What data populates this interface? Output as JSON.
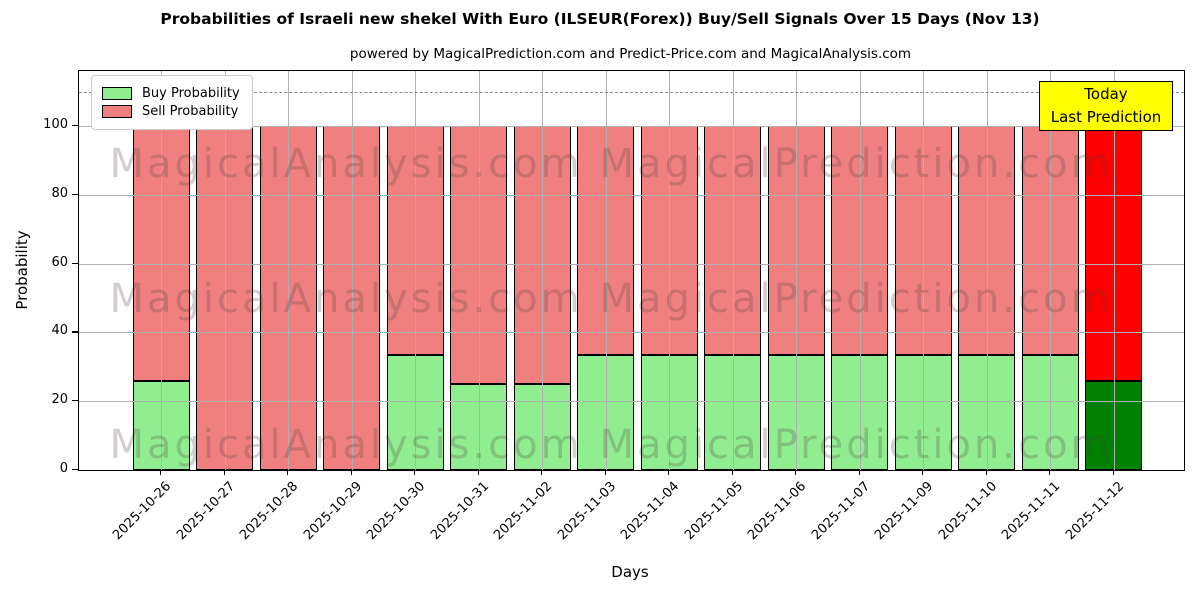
{
  "title": "Probabilities of Israeli new shekel With Euro (ILSEUR(Forex)) Buy/Sell Signals Over 15 Days (Nov 13)",
  "subtitle": "powered by MagicalPrediction.com and Predict-Price.com and MagicalAnalysis.com",
  "watermarks": {
    "left": "MagicalAnalysis.com",
    "right": "MagicalPrediction.com"
  },
  "annotation_box": {
    "lines": [
      "Today",
      "Last Prediction"
    ],
    "bg_color": "#ffff00"
  },
  "chart_data": {
    "type": "bar",
    "stacked": true,
    "categories": [
      "2025-10-26",
      "2025-10-27",
      "2025-10-28",
      "2025-10-29",
      "2025-10-30",
      "2025-10-31",
      "2025-11-02",
      "2025-11-03",
      "2025-11-04",
      "2025-11-05",
      "2025-11-06",
      "2025-11-07",
      "2025-11-09",
      "2025-11-10",
      "2025-11-11",
      "2025-11-12"
    ],
    "series": [
      {
        "name": "Buy Probability",
        "color": "#90ee90",
        "today_color": "#008000",
        "values": [
          26,
          0,
          0,
          0,
          33.33,
          25,
          25,
          33.33,
          33.33,
          33.33,
          33.33,
          33.33,
          33.33,
          33.33,
          33.33,
          26
        ]
      },
      {
        "name": "Sell Probability",
        "color": "#f08080",
        "today_color": "#ff0000",
        "values": [
          74,
          100,
          100,
          100,
          66.67,
          75,
          75,
          66.67,
          66.67,
          66.67,
          66.67,
          66.67,
          66.67,
          66.67,
          66.67,
          74
        ]
      }
    ],
    "today_index": 15,
    "xlabel": "Days",
    "ylabel": "Probability",
    "yticks": [
      0,
      20,
      40,
      60,
      80,
      100
    ],
    "ylim": [
      0,
      116
    ],
    "hline": {
      "y": 110,
      "style": "dashed",
      "color": "#8a8a8a"
    },
    "grid": true,
    "legend_position": "upper-left",
    "bar_edge_color": "#000000"
  }
}
